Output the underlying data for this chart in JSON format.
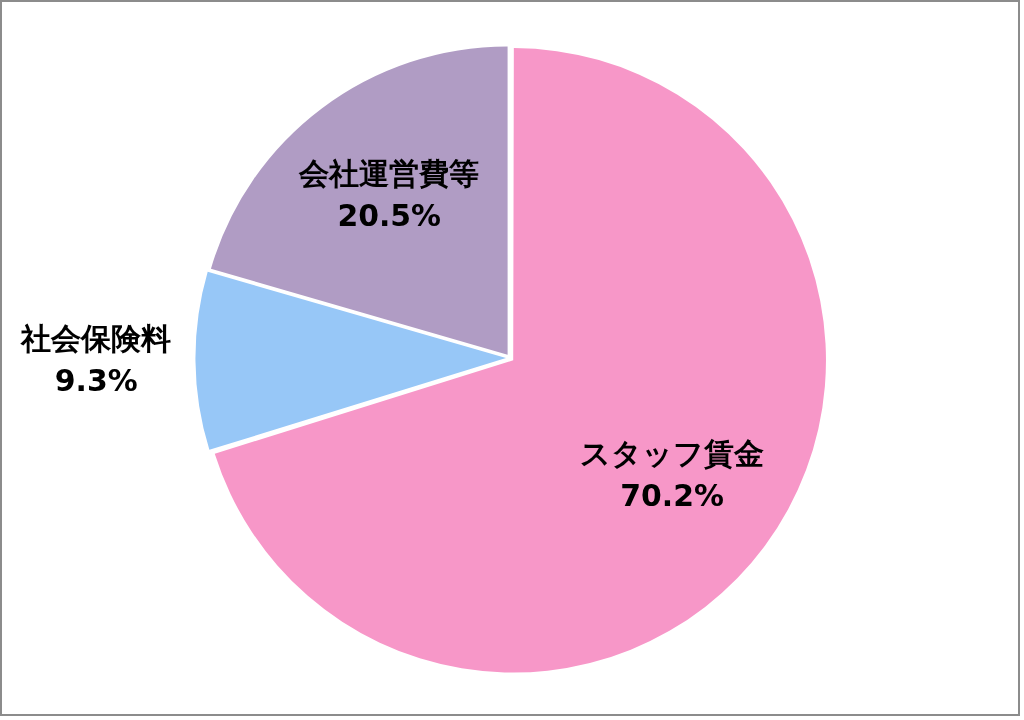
{
  "chart_data": {
    "type": "pie",
    "categories": [
      "スタッフ賃金",
      "社会保険料",
      "会社運営費等"
    ],
    "values": [
      70.2,
      9.3,
      20.5
    ],
    "colors": [
      "#f797c8",
      "#97c7f7",
      "#b09cc4"
    ],
    "value_labels": [
      "70.2%",
      "9.3%",
      "20.5%"
    ]
  }
}
